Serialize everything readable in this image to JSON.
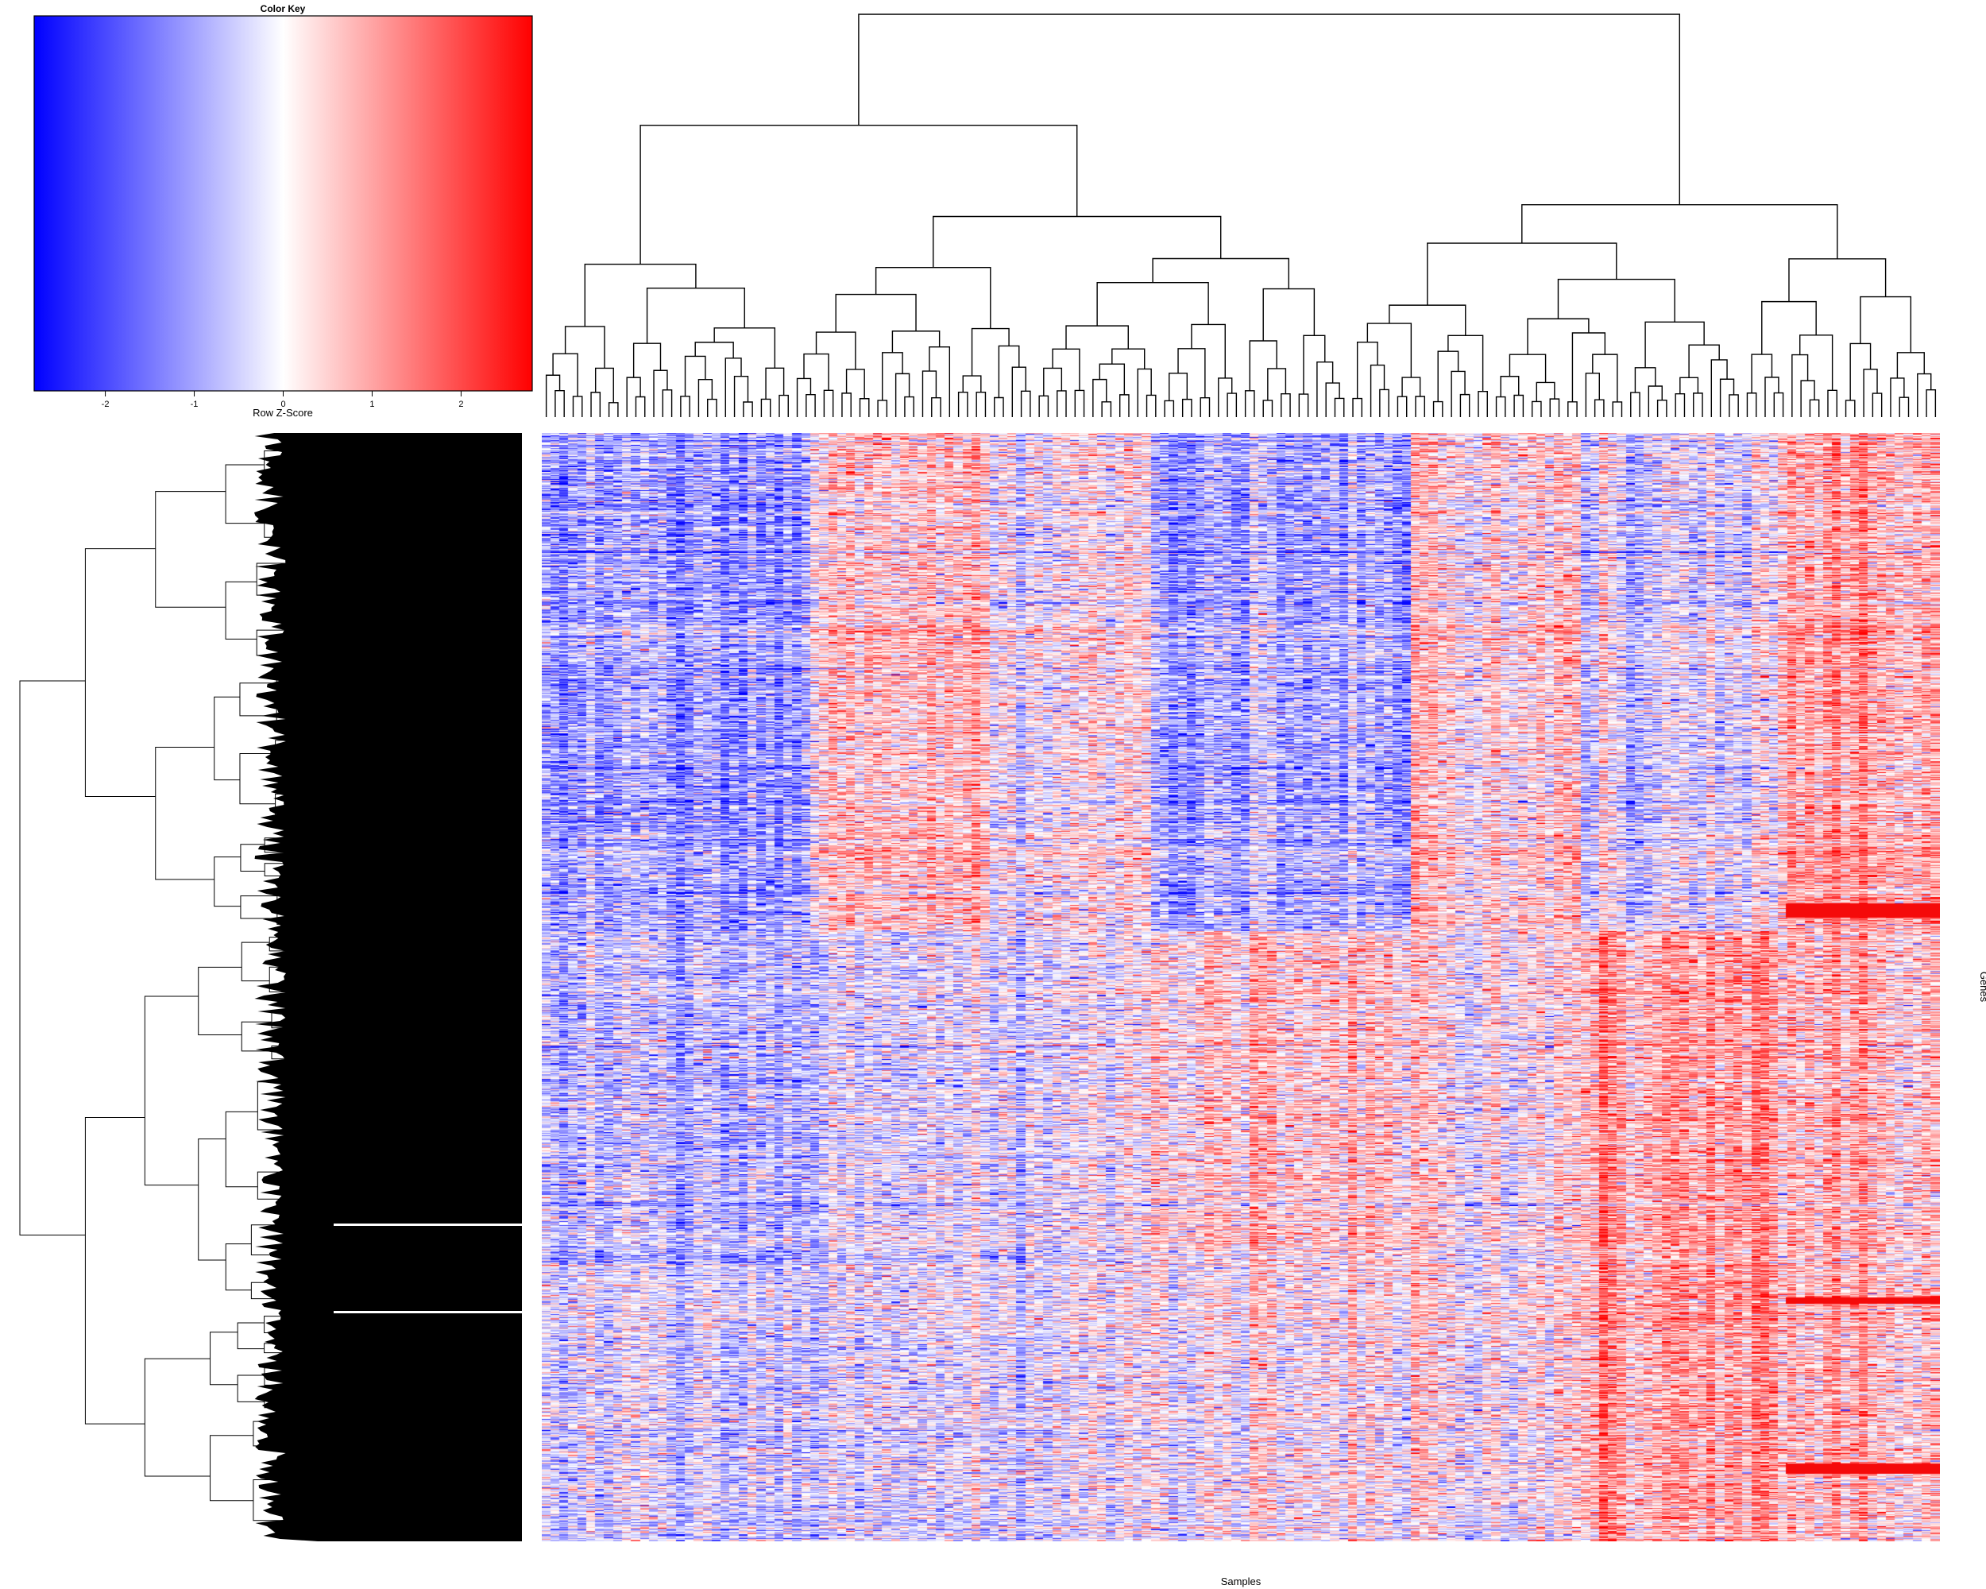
{
  "chart_data": [
    {
      "type": "heatmap",
      "title": "",
      "xlabel": "Samples",
      "ylabel": "Genes",
      "n_columns": 156,
      "n_rows": 1200,
      "row_dendrogram": true,
      "column_dendrogram": true,
      "colormap": [
        "#0000ff",
        "#ffffff",
        "#ff0000"
      ],
      "value_range": [
        -2.8,
        2.8
      ],
      "column_blocks": [
        {
          "from": 0,
          "to": 30,
          "pattern": "blue_top"
        },
        {
          "from": 30,
          "to": 50,
          "pattern": "mixed_red_top"
        },
        {
          "from": 50,
          "to": 68,
          "pattern": "mixed"
        },
        {
          "from": 68,
          "to": 97,
          "pattern": "blue_top_red_mid"
        },
        {
          "from": 97,
          "to": 116,
          "pattern": "mixed_red"
        },
        {
          "from": 116,
          "to": 138,
          "pattern": "red_bottom"
        },
        {
          "from": 138,
          "to": 156,
          "pattern": "red"
        }
      ]
    },
    {
      "type": "heatmap",
      "title": "Color Key",
      "xlabel": "Row Z-Score",
      "ylabel": "",
      "xlim": [
        -2.8,
        2.8
      ],
      "ticks": [
        -2,
        -1,
        0,
        1,
        2
      ],
      "tick_labels": [
        "-2",
        "-1",
        "0",
        "1",
        "2"
      ],
      "colormap": [
        "#0000ff",
        "#ffffff",
        "#ff0000"
      ]
    }
  ]
}
